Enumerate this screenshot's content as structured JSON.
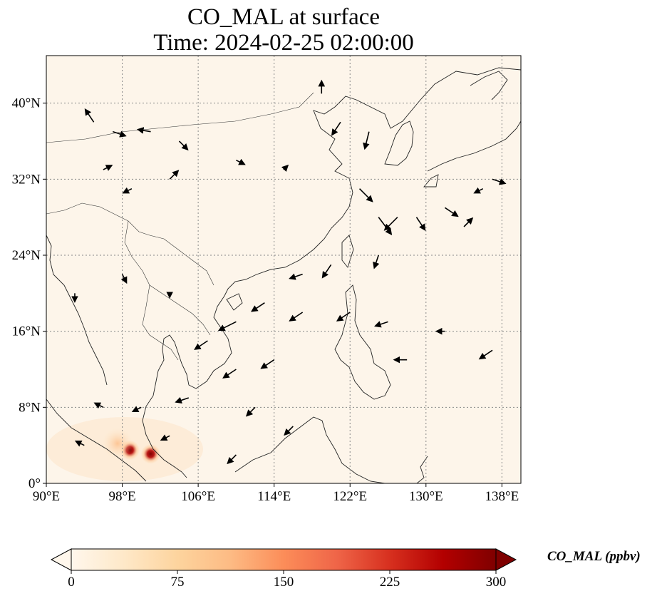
{
  "title": {
    "line1": "CO_MAL at surface",
    "line2": "Time: 2024-02-25 02:00:00"
  },
  "map": {
    "projection": "PlateCarree",
    "lon_range": [
      90,
      140
    ],
    "lat_range": [
      0,
      45
    ],
    "grid": true,
    "lon_ticks": [
      {
        "value": 90,
        "label": "90°E"
      },
      {
        "value": 98,
        "label": "98°E"
      },
      {
        "value": 106,
        "label": "106°E"
      },
      {
        "value": 114,
        "label": "114°E"
      },
      {
        "value": 122,
        "label": "122°E"
      },
      {
        "value": 130,
        "label": "130°E"
      },
      {
        "value": 138,
        "label": "138°E"
      }
    ],
    "lat_ticks": [
      {
        "value": 0,
        "label": "0°"
      },
      {
        "value": 8,
        "label": "8°N"
      },
      {
        "value": 16,
        "label": "16°N"
      },
      {
        "value": 24,
        "label": "24°N"
      },
      {
        "value": 32,
        "label": "32°N"
      },
      {
        "value": 40,
        "label": "40°N"
      }
    ],
    "background_color": "#fdf5ea",
    "plumes": [
      {
        "lon": 98.8,
        "lat": 3.5,
        "intensity": "high"
      },
      {
        "lon": 101.0,
        "lat": 3.1,
        "intensity": "high"
      },
      {
        "lon": 97.5,
        "lat": 4.2,
        "intensity": "medium"
      }
    ]
  },
  "colorbar": {
    "label": "CO_MAL (ppbv)",
    "colormap": "OrRd",
    "colors": [
      "#fff7ec",
      "#fee8c8",
      "#fdd49e",
      "#fdbb84",
      "#fc8d59",
      "#ef6548",
      "#d7301f",
      "#b30000",
      "#7f0000"
    ],
    "range": [
      0,
      300
    ],
    "extend": "both",
    "ticks": [
      {
        "value": 0,
        "label": "0"
      },
      {
        "value": 75,
        "label": "75"
      },
      {
        "value": 150,
        "label": "150"
      },
      {
        "value": 225,
        "label": "225"
      },
      {
        "value": 300,
        "label": "300"
      }
    ]
  },
  "wind_field": {
    "description_units": "m/s",
    "vectors": [
      {
        "lon": 95,
        "lat": 38,
        "u": -2,
        "v": 3
      },
      {
        "lon": 97,
        "lat": 37,
        "u": 3,
        "v": -1
      },
      {
        "lon": 101,
        "lat": 37,
        "u": -3,
        "v": 0.5
      },
      {
        "lon": 104,
        "lat": 36,
        "u": 2,
        "v": -2
      },
      {
        "lon": 96,
        "lat": 33,
        "u": 2,
        "v": 1
      },
      {
        "lon": 99,
        "lat": 31,
        "u": -2,
        "v": -1
      },
      {
        "lon": 103,
        "lat": 32,
        "u": 2,
        "v": 2
      },
      {
        "lon": 110,
        "lat": 34,
        "u": 2,
        "v": -1
      },
      {
        "lon": 115,
        "lat": 33,
        "u": 1,
        "v": 1
      },
      {
        "lon": 119,
        "lat": 41,
        "u": 0,
        "v": 3
      },
      {
        "lon": 121,
        "lat": 38,
        "u": -2,
        "v": -3
      },
      {
        "lon": 124,
        "lat": 37,
        "u": -1,
        "v": -4
      },
      {
        "lon": 123,
        "lat": 31,
        "u": 3,
        "v": -3
      },
      {
        "lon": 125,
        "lat": 28,
        "u": 3,
        "v": -4
      },
      {
        "lon": 127,
        "lat": 28,
        "u": -3,
        "v": -3
      },
      {
        "lon": 129,
        "lat": 28,
        "u": 2,
        "v": -3
      },
      {
        "lon": 132,
        "lat": 29,
        "u": 3,
        "v": -2
      },
      {
        "lon": 134,
        "lat": 27,
        "u": 2,
        "v": 2
      },
      {
        "lon": 137,
        "lat": 32,
        "u": 3,
        "v": -1
      },
      {
        "lon": 136,
        "lat": 31,
        "u": -2,
        "v": -1
      },
      {
        "lon": 125,
        "lat": 24,
        "u": -1,
        "v": -3
      },
      {
        "lon": 120,
        "lat": 23,
        "u": -2,
        "v": -3
      },
      {
        "lon": 117,
        "lat": 22,
        "u": -3,
        "v": -1
      },
      {
        "lon": 113,
        "lat": 19,
        "u": -3,
        "v": -2
      },
      {
        "lon": 110,
        "lat": 17,
        "u": -4,
        "v": -2
      },
      {
        "lon": 107,
        "lat": 15,
        "u": -3,
        "v": -2
      },
      {
        "lon": 117,
        "lat": 18,
        "u": -3,
        "v": -2
      },
      {
        "lon": 122,
        "lat": 18,
        "u": -3,
        "v": -2
      },
      {
        "lon": 126,
        "lat": 17,
        "u": -3,
        "v": -1
      },
      {
        "lon": 114,
        "lat": 13,
        "u": -3,
        "v": -2
      },
      {
        "lon": 110,
        "lat": 12,
        "u": -3,
        "v": -2
      },
      {
        "lon": 105,
        "lat": 9,
        "u": -3,
        "v": -1
      },
      {
        "lon": 112,
        "lat": 8,
        "u": -2,
        "v": -2
      },
      {
        "lon": 116,
        "lat": 6,
        "u": -2,
        "v": -2
      },
      {
        "lon": 100,
        "lat": 8,
        "u": -2,
        "v": -1
      },
      {
        "lon": 96,
        "lat": 8,
        "u": -2,
        "v": 1
      },
      {
        "lon": 94,
        "lat": 4,
        "u": -2,
        "v": 1
      },
      {
        "lon": 103,
        "lat": 5,
        "u": -2,
        "v": -1
      },
      {
        "lon": 110,
        "lat": 3,
        "u": -2,
        "v": -2
      },
      {
        "lon": 128,
        "lat": 13,
        "u": -3,
        "v": 0
      },
      {
        "lon": 132,
        "lat": 16,
        "u": -2,
        "v": 0
      },
      {
        "lon": 137,
        "lat": 14,
        "u": -3,
        "v": -2
      },
      {
        "lon": 93,
        "lat": 20,
        "u": 0,
        "v": -2
      },
      {
        "lon": 98,
        "lat": 22,
        "u": 1,
        "v": -2
      },
      {
        "lon": 103,
        "lat": 20,
        "u": 0,
        "v": -1
      }
    ]
  }
}
